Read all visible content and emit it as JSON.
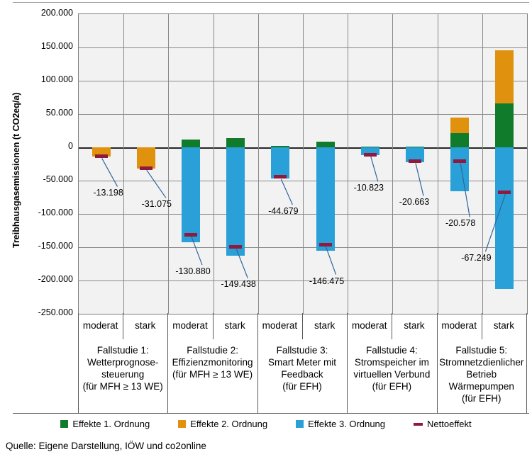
{
  "source": "Quelle: Eigene Darstellung, IÖW und co2online",
  "chart_data": {
    "type": "bar",
    "stacked": true,
    "title": "",
    "ylabel": "Treibhausgasemissionen (t CO2eq/a)",
    "xlabel": "",
    "ylim": [
      -250000,
      200000
    ],
    "grid": true,
    "legend_position": "bottom",
    "plot_bg": "#f2f2f2",
    "leader_color": "#31659b",
    "yticks": [
      {
        "value": 200000,
        "label": "200.000"
      },
      {
        "value": 150000,
        "label": "150.000"
      },
      {
        "value": 100000,
        "label": "100.000"
      },
      {
        "value": 50000,
        "label": "50.000"
      },
      {
        "value": 0,
        "label": "0"
      },
      {
        "value": -50000,
        "label": "-50.000"
      },
      {
        "value": -100000,
        "label": "-100.000"
      },
      {
        "value": -150000,
        "label": "-150.000"
      },
      {
        "value": -200000,
        "label": "-200.000"
      },
      {
        "value": -250000,
        "label": "-250.000"
      }
    ],
    "legend": [
      {
        "key": "ordnung1",
        "label": "Effekte 1. Ordnung",
        "color": "#107c2b",
        "marker": "square"
      },
      {
        "key": "ordnung2",
        "label": "Effekte 2. Ordnung",
        "color": "#e0920f",
        "marker": "square"
      },
      {
        "key": "ordnung3",
        "label": "Effekte 3. Ordnung",
        "color": "#29a0d8",
        "marker": "square"
      },
      {
        "key": "netto",
        "label": "Nettoeffekt",
        "color": "#901a3e",
        "marker": "dash"
      }
    ],
    "groups": [
      {
        "label_lines": [
          "Fallstudie 1:",
          "Wetterprognose-",
          "steuerung",
          "(für MFH ≥ 13 WE)"
        ],
        "bars": [
          {
            "scenario": "moderat",
            "segments": [
              {
                "series": "ordnung2",
                "value": -13800
              }
            ],
            "netto": -13198,
            "netto_label": "-13.198",
            "label_offset": [
              10,
              52
            ]
          },
          {
            "scenario": "stark",
            "segments": [
              {
                "series": "ordnung2",
                "value": -31600
              }
            ],
            "netto": -31075,
            "netto_label": "-31.075",
            "label_offset": [
              15,
              51
            ]
          }
        ]
      },
      {
        "label_lines": [
          "Fallstudie 2:",
          "Effizienzmonitoring",
          "(für MFH ≥ 13 WE)"
        ],
        "bars": [
          {
            "scenario": "moderat",
            "segments": [
              {
                "series": "ordnung1",
                "value": 12000
              },
              {
                "series": "ordnung3",
                "value": -142900
              }
            ],
            "netto": -130880,
            "netto_label": "-130.880",
            "label_offset": [
              3,
              52
            ]
          },
          {
            "scenario": "stark",
            "segments": [
              {
                "series": "ordnung1",
                "value": 13500
              },
              {
                "series": "ordnung3",
                "value": -162900
              }
            ],
            "netto": -149438,
            "netto_label": "-149.438",
            "label_offset": [
              4,
              53
            ]
          }
        ]
      },
      {
        "label_lines": [
          "Fallstudie 3:",
          "Smart Meter mit",
          "Feedback",
          "(für EFH)"
        ],
        "bars": [
          {
            "scenario": "moderat",
            "segments": [
              {
                "series": "ordnung1",
                "value": 2000
              },
              {
                "series": "ordnung3",
                "value": -46700
              }
            ],
            "netto": -44679,
            "netto_label": "-44.679",
            "label_offset": [
              4,
              48
            ]
          },
          {
            "scenario": "stark",
            "segments": [
              {
                "series": "ordnung1",
                "value": 9000
              },
              {
                "series": "ordnung3",
                "value": -155500
              }
            ],
            "netto": -146475,
            "netto_label": "-146.475",
            "label_offset": [
              2,
              51
            ]
          }
        ]
      },
      {
        "label_lines": [
          "Fallstudie 4:",
          "Stromspeicher im",
          "virtuellen Verbund",
          "(für EFH)"
        ],
        "bars": [
          {
            "scenario": "moderat",
            "segments": [
              {
                "series": "ordnung1",
                "value": 1200
              },
              {
                "series": "ordnung3",
                "value": -12000
              }
            ],
            "netto": -10823,
            "netto_label": "-10.823",
            "label_offset": [
              -2,
              47
            ]
          },
          {
            "scenario": "stark",
            "segments": [
              {
                "series": "ordnung1",
                "value": 1350
              },
              {
                "series": "ordnung3",
                "value": -22000
              }
            ],
            "netto": -20663,
            "netto_label": "-20.663",
            "label_offset": [
              -1,
              58
            ]
          }
        ]
      },
      {
        "label_lines": [
          "Fallstudie 5:",
          "Stromnetzdienlicher",
          "Betrieb",
          "Wärmepumpen",
          "(für EFH)"
        ],
        "bars": [
          {
            "scenario": "moderat",
            "segments": [
              {
                "series": "ordnung1",
                "value": 21500
              },
              {
                "series": "ordnung2",
                "value": 23500
              },
              {
                "series": "ordnung3",
                "value": -65500
              }
            ],
            "netto": -20578,
            "netto_label": "-20.578",
            "label_offset": [
              1,
              88
            ]
          },
          {
            "scenario": "stark",
            "segments": [
              {
                "series": "ordnung1",
                "value": 66000
              },
              {
                "series": "ordnung2",
                "value": 79500
              },
              {
                "series": "ordnung3",
                "value": -213000
              }
            ],
            "netto": -67249,
            "netto_label": "-67.249",
            "label_offset": [
              -40,
              93
            ]
          }
        ]
      }
    ]
  }
}
